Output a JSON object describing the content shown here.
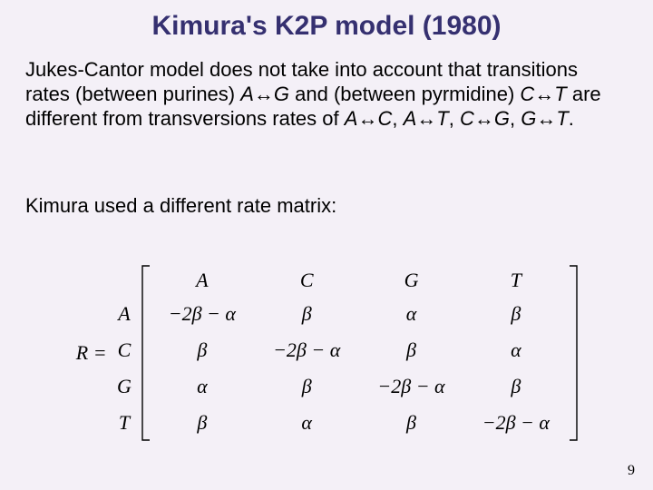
{
  "title": "Kimura's K2P model (1980)",
  "para1_pre": "Jukes-Cantor model does not take into account that transitions rates (between purines) ",
  "para1_ag_a": "A",
  "para1_ag_arrow": "↔",
  "para1_ag_g": "G",
  "para1_mid1": " and (between pyrmidine) ",
  "para1_ct_c": "C",
  "para1_ct_arrow": "↔",
  "para1_ct_t": "T",
  "para1_mid2": " are different from transversions rates of ",
  "pairs_a1": "A",
  "pairs_arr": "↔",
  "pairs_c": "C",
  "pairs_sep": ", ",
  "pairs_t": "T",
  "pairs_g": "G",
  "pairs_end": ".",
  "para2": "Kimura used a different rate matrix:",
  "R_eq": "R =",
  "row_labels": [
    "A",
    "C",
    "G",
    "T"
  ],
  "col_labels": [
    "A",
    "C",
    "G",
    "T"
  ],
  "matrix": [
    [
      "−2β − α",
      "β",
      "α",
      "β"
    ],
    [
      "β",
      "−2β − α",
      "β",
      "α"
    ],
    [
      "α",
      "β",
      "−2β − α",
      "β"
    ],
    [
      "β",
      "α",
      "β",
      "−2β − α"
    ]
  ],
  "page": "9"
}
